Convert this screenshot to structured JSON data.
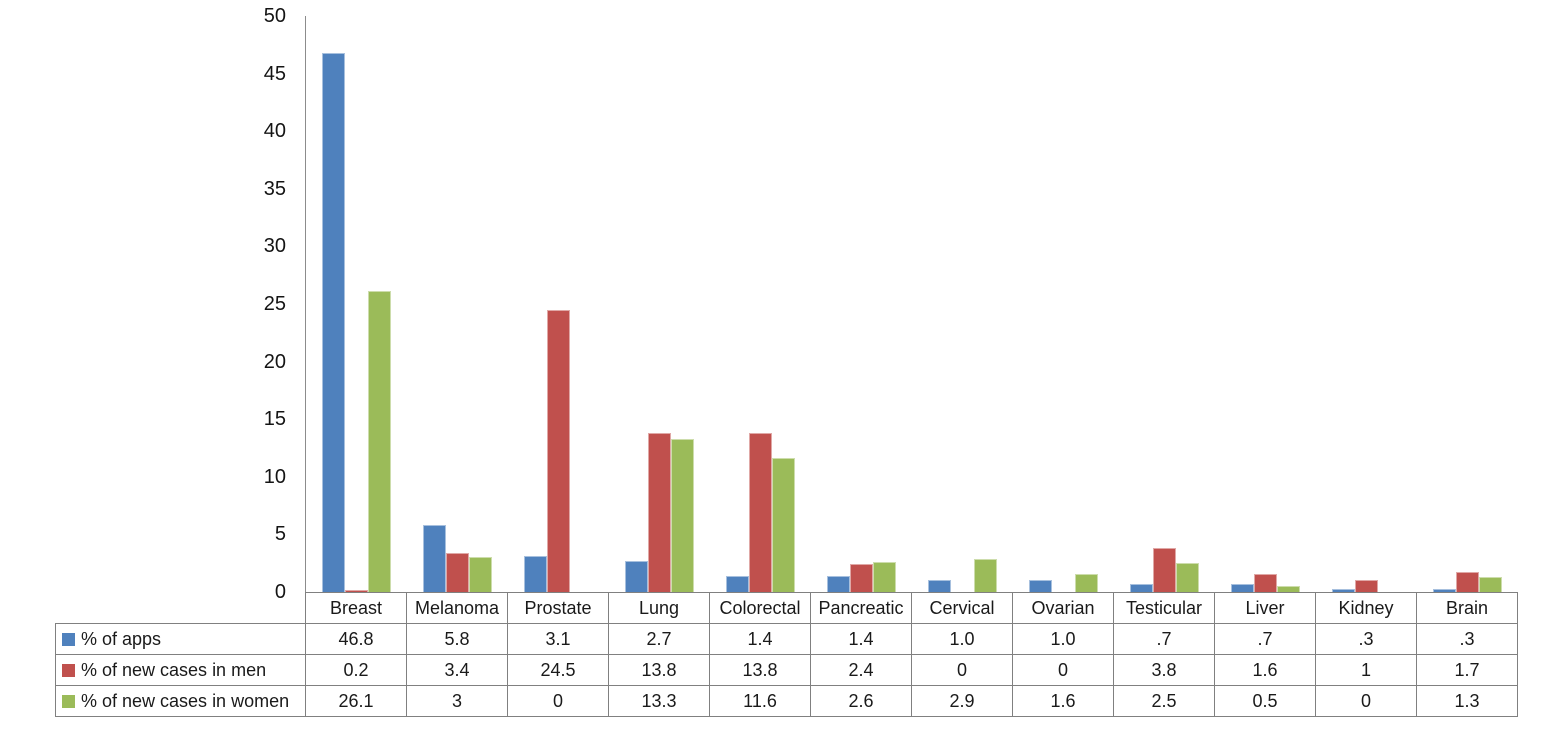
{
  "chart_data": {
    "type": "bar",
    "title": "",
    "xlabel": "",
    "ylabel": "",
    "categories": [
      "Breast",
      "Melanoma",
      "Prostate",
      "Lung",
      "Colorectal",
      "Pancreatic",
      "Cervical",
      "Ovarian",
      "Testicular",
      "Liver",
      "Kidney",
      "Brain"
    ],
    "series": [
      {
        "name": "% of apps",
        "color": "#4F81BD",
        "values": [
          46.8,
          5.8,
          3.1,
          2.7,
          1.4,
          1.4,
          1.0,
          1.0,
          0.7,
          0.7,
          0.3,
          0.3
        ],
        "display": [
          "46.8",
          "5.8",
          "3.1",
          "2.7",
          "1.4",
          "1.4",
          "1.0",
          "1.0",
          ".7",
          ".7",
          ".3",
          ".3"
        ]
      },
      {
        "name": "% of new cases in men",
        "color": "#C0504D",
        "values": [
          0.2,
          3.4,
          24.5,
          13.8,
          13.8,
          2.4,
          0,
          0,
          3.8,
          1.6,
          1,
          1.7
        ],
        "display": [
          "0.2",
          "3.4",
          "24.5",
          "13.8",
          "13.8",
          "2.4",
          "0",
          "0",
          "3.8",
          "1.6",
          "1",
          "1.7"
        ]
      },
      {
        "name": "% of new cases in women",
        "color": "#9BBB59",
        "values": [
          26.1,
          3,
          0,
          13.3,
          11.6,
          2.6,
          2.9,
          1.6,
          2.5,
          0.5,
          0,
          1.3
        ],
        "display": [
          "26.1",
          "3",
          "0",
          "13.3",
          "11.6",
          "2.6",
          "2.9",
          "1.6",
          "2.5",
          "0.5",
          "0",
          "1.3"
        ]
      }
    ],
    "ylim": [
      0,
      50
    ],
    "ytick_step": 5,
    "yticks": [
      "0",
      "5",
      "10",
      "15",
      "20",
      "25",
      "30",
      "35",
      "40",
      "45",
      "50"
    ],
    "grid": false,
    "legend_position": "table-left",
    "axis_color": "#8C8C8C",
    "table_border_color": "#808080",
    "bar_edge_highlight": "rgba(255,255,255,0.5)"
  }
}
